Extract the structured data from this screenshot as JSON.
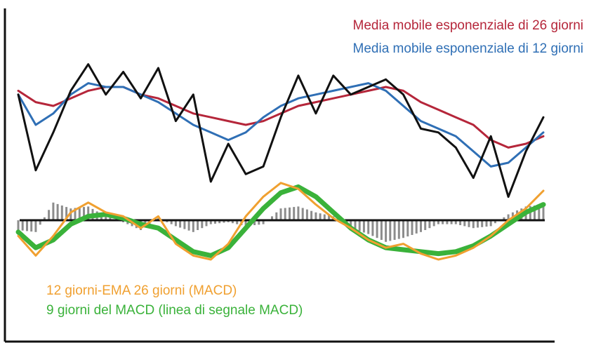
{
  "chart_data": {
    "type": "line",
    "title": "",
    "xlabel": "",
    "ylabel": "",
    "colors": {
      "price": "#111111",
      "ema26": "#b5263a",
      "ema12": "#2f6fb5",
      "macd": "#f0a030",
      "signal": "#3ab23a",
      "histogram": "#8c8c8c",
      "zero_line": "#111111"
    },
    "upper_panel": {
      "x": [
        0,
        1,
        2,
        3,
        4,
        5,
        6,
        7,
        8,
        9,
        10,
        11,
        12,
        13,
        14,
        15,
        16,
        17,
        18,
        19,
        20,
        21,
        22,
        23,
        24,
        25,
        26,
        27,
        28,
        29,
        30
      ],
      "series": [
        {
          "key": "price",
          "name": "",
          "values": [
            0.8,
            -1.2,
            -0.2,
            0.9,
            1.6,
            0.8,
            1.4,
            0.7,
            1.5,
            0.1,
            0.8,
            -1.5,
            -0.5,
            -1.3,
            -1.1,
            0.2,
            1.3,
            0.3,
            1.3,
            0.8,
            1.0,
            1.2,
            0.8,
            -0.1,
            -0.2,
            -0.6,
            -1.4,
            -0.3,
            -1.9,
            -0.7,
            0.2
          ]
        },
        {
          "key": "ema26",
          "name": "Media mobile esponenziale di 26 giorni",
          "values": [
            0.9,
            0.6,
            0.5,
            0.7,
            0.9,
            1.0,
            1.0,
            0.8,
            0.7,
            0.5,
            0.3,
            0.2,
            0.1,
            0.0,
            0.1,
            0.3,
            0.5,
            0.6,
            0.7,
            0.8,
            0.9,
            1.0,
            0.9,
            0.6,
            0.4,
            0.2,
            0.0,
            -0.4,
            -0.6,
            -0.5,
            -0.3
          ]
        },
        {
          "key": "ema12",
          "name": "Media mobile esponenziale di 12 giorni",
          "values": [
            0.8,
            0.0,
            0.3,
            0.8,
            1.1,
            1.0,
            1.0,
            0.8,
            0.6,
            0.3,
            0.0,
            -0.2,
            -0.4,
            -0.2,
            0.2,
            0.5,
            0.7,
            0.8,
            0.9,
            1.0,
            1.1,
            0.9,
            0.5,
            0.1,
            -0.1,
            -0.3,
            -0.7,
            -1.1,
            -1.0,
            -0.6,
            -0.2
          ]
        }
      ]
    },
    "lower_panel": {
      "x": [
        0,
        1,
        2,
        3,
        4,
        5,
        6,
        7,
        8,
        9,
        10,
        11,
        12,
        13,
        14,
        15,
        16,
        17,
        18,
        19,
        20,
        21,
        22,
        23,
        24,
        25,
        26,
        27,
        28,
        29,
        30
      ],
      "series": [
        {
          "key": "macd",
          "name": "12 giorni-EMA 26 giorni (MACD)",
          "values": [
            -0.4,
            -0.9,
            -0.4,
            0.2,
            0.45,
            0.2,
            0.1,
            -0.2,
            0.1,
            -0.6,
            -0.9,
            -1.0,
            -0.6,
            0.1,
            0.6,
            0.95,
            0.8,
            0.4,
            0.05,
            -0.2,
            -0.5,
            -0.7,
            -0.6,
            -0.85,
            -1.0,
            -0.9,
            -0.7,
            -0.4,
            0.0,
            0.3,
            0.75
          ]
        },
        {
          "key": "signal",
          "name": "9 giorni del MACD (linea di segnale MACD)",
          "values": [
            -0.3,
            -0.7,
            -0.5,
            -0.1,
            0.1,
            0.15,
            0.05,
            -0.1,
            -0.2,
            -0.5,
            -0.8,
            -0.9,
            -0.7,
            -0.2,
            0.3,
            0.7,
            0.85,
            0.6,
            0.2,
            -0.2,
            -0.5,
            -0.7,
            -0.75,
            -0.8,
            -0.85,
            -0.8,
            -0.65,
            -0.4,
            -0.1,
            0.2,
            0.4
          ]
        }
      ],
      "histogram": [
        -0.25,
        -0.3,
        0.45,
        0.3,
        0.35,
        0.1,
        -0.05,
        -0.25,
        0.05,
        -0.15,
        -0.3,
        -0.1,
        -0.05,
        -0.15,
        -0.1,
        0.3,
        0.35,
        0.2,
        0.1,
        -0.2,
        -0.35,
        -0.55,
        -0.45,
        -0.3,
        -0.1,
        -0.1,
        -0.2,
        -0.15,
        0.15,
        0.35,
        0.4
      ]
    }
  }
}
